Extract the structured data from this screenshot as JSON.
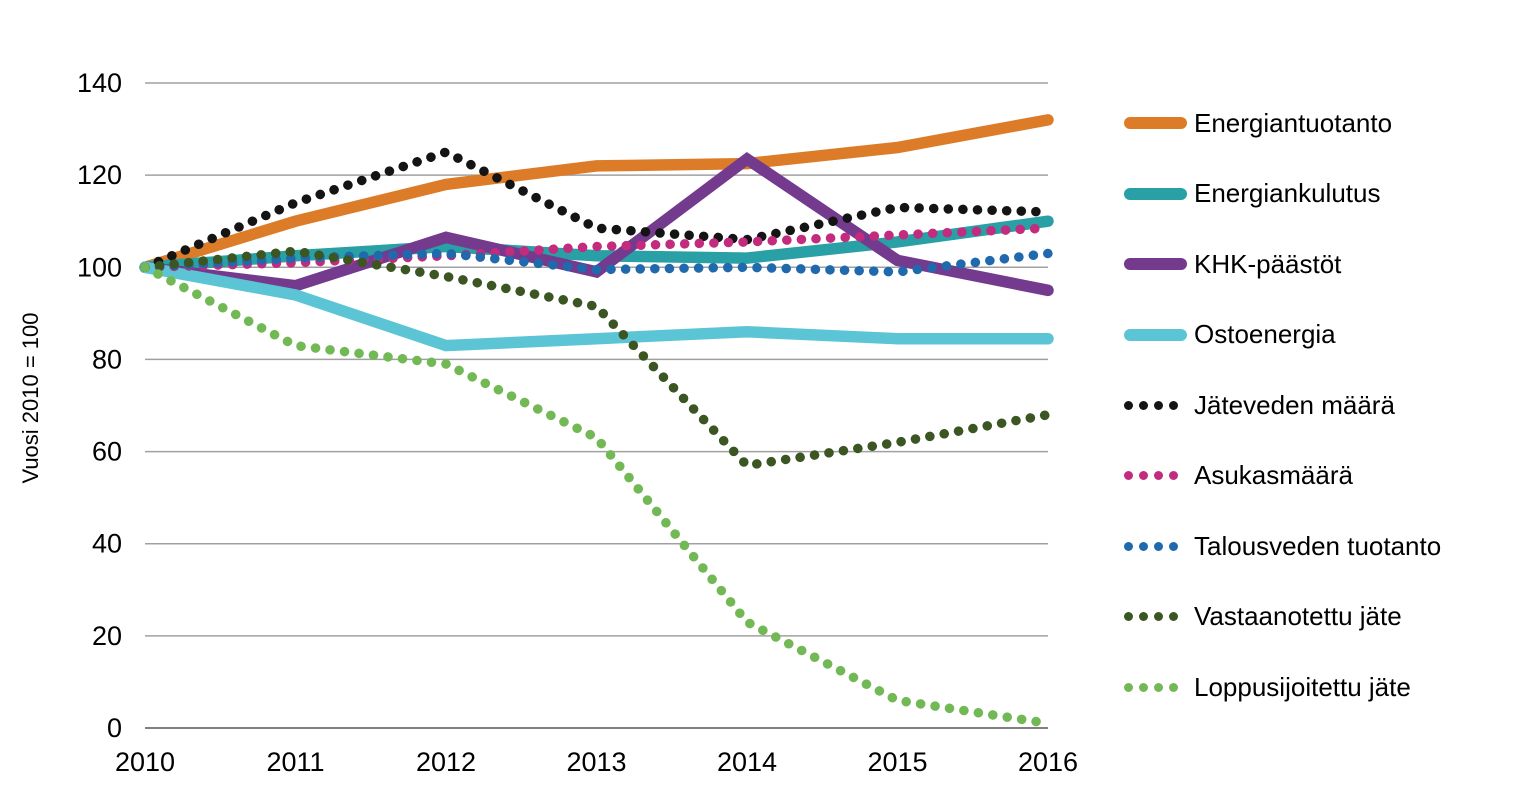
{
  "chart_data": {
    "type": "line",
    "x": [
      "2010",
      "2011",
      "2012",
      "2013",
      "2014",
      "2015",
      "2016"
    ],
    "series": [
      {
        "name": "Energiantuotanto",
        "style": "solid",
        "color": "#DD7C28",
        "values": [
          100,
          110,
          118,
          122,
          122.5,
          126,
          132
        ]
      },
      {
        "name": "Energiankulutus",
        "style": "solid",
        "color": "#28A0A6",
        "values": [
          100,
          102.5,
          104.5,
          102.5,
          102,
          105.5,
          110
        ]
      },
      {
        "name": "KHK-päästöt",
        "style": "solid",
        "color": "#743A8E",
        "values": [
          100,
          96,
          106.5,
          99,
          123.5,
          101.5,
          95
        ]
      },
      {
        "name": "Ostoenergia",
        "style": "solid",
        "color": "#5CC5D5",
        "values": [
          100,
          94,
          83,
          84.5,
          86,
          84.5,
          84.5
        ]
      },
      {
        "name": "Jäteveden määrä",
        "style": "dotted",
        "color": "#141414",
        "values": [
          100,
          114,
          125,
          108.5,
          106,
          113,
          112
        ]
      },
      {
        "name": "Asukasmäärä",
        "style": "dotted",
        "color": "#C22B7E",
        "values": [
          100,
          101,
          102.5,
          104.5,
          105.5,
          107,
          108.5
        ]
      },
      {
        "name": "Talousveden tuotanto",
        "style": "dotted",
        "color": "#1F69AC",
        "values": [
          100,
          102,
          103,
          99.5,
          100,
          99,
          103
        ]
      },
      {
        "name": "Vastaanotettu jäte",
        "style": "dotted",
        "color": "#3C5623",
        "values": [
          100,
          103.5,
          98,
          91.5,
          57,
          62,
          68
        ]
      },
      {
        "name": "Loppusijoitettu jäte",
        "style": "dotted",
        "color": "#72B956",
        "values": [
          100,
          83,
          79,
          63,
          23,
          6,
          1
        ]
      }
    ],
    "title": "",
    "xlabel": "",
    "ylabel": "Vuosi 2010 = 100",
    "ylim": [
      0,
      140
    ],
    "ytick_step": 20,
    "ytick_labels": [
      "0",
      "20",
      "40",
      "60",
      "80",
      "100",
      "120",
      "140"
    ],
    "grid": true,
    "grid_color": "#A0A0A0",
    "axis_color": "#808080",
    "legend_position": "right",
    "text_color": "#000000"
  }
}
